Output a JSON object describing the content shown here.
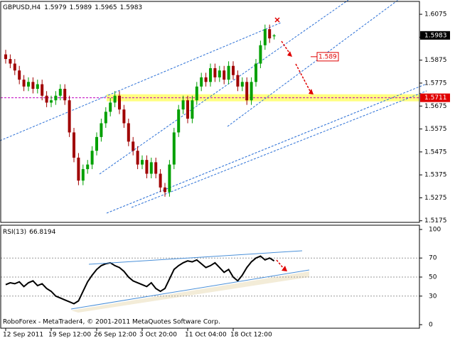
{
  "chart_data": [
    {
      "type": "candlestick",
      "title": "GBPUSD,H4",
      "categories": [
        "12 Sep 2011",
        null,
        null,
        null,
        null,
        null,
        null,
        null,
        null,
        null,
        "19 Sep 12:00",
        null,
        null,
        null,
        null,
        null,
        null,
        null,
        null,
        null,
        "26 Sep 12:00",
        null,
        null,
        null,
        null,
        null,
        null,
        null,
        null,
        null,
        "3 Oct 20:00",
        null,
        null,
        null,
        null,
        null,
        null,
        null,
        null,
        null,
        "11 Oct 04:00",
        null,
        null,
        null,
        null,
        null,
        null,
        null,
        null,
        null,
        "18 Oct 12:00",
        null,
        null,
        null,
        null,
        null,
        null,
        null,
        null,
        null
      ],
      "open": [
        1.59,
        1.588,
        1.586,
        1.583,
        1.579,
        1.576,
        1.578,
        1.575,
        1.577,
        1.572,
        1.569,
        1.57,
        1.572,
        1.575,
        1.57,
        1.556,
        1.545,
        1.535,
        1.54,
        1.542,
        1.548,
        1.554,
        1.56,
        1.565,
        1.569,
        1.572,
        1.566,
        1.56,
        1.552,
        1.548,
        1.542,
        1.544,
        1.538,
        1.543,
        1.538,
        1.532,
        1.53,
        1.542,
        1.556,
        1.566,
        1.57,
        1.562,
        1.57,
        1.576,
        1.58,
        1.578,
        1.584,
        1.58,
        1.583,
        1.579,
        1.585,
        1.581,
        1.576,
        1.578,
        1.57,
        1.578,
        1.586,
        1.594,
        1.601,
        1.5979
      ],
      "high": [
        1.592,
        1.59,
        1.588,
        1.585,
        1.581,
        1.58,
        1.58,
        1.579,
        1.579,
        1.574,
        1.572,
        1.574,
        1.577,
        1.577,
        1.572,
        1.558,
        1.547,
        1.542,
        1.544,
        1.55,
        1.556,
        1.562,
        1.567,
        1.571,
        1.574,
        1.574,
        1.568,
        1.562,
        1.554,
        1.55,
        1.546,
        1.546,
        1.545,
        1.545,
        1.54,
        1.534,
        1.544,
        1.558,
        1.568,
        1.572,
        1.572,
        1.572,
        1.578,
        1.582,
        1.582,
        1.586,
        1.586,
        1.585,
        1.585,
        1.587,
        1.587,
        1.583,
        1.58,
        1.58,
        1.58,
        1.588,
        1.596,
        1.603,
        1.603,
        1.5989
      ],
      "low": [
        1.586,
        1.584,
        1.581,
        1.577,
        1.574,
        1.574,
        1.573,
        1.573,
        1.57,
        1.567,
        1.567,
        1.568,
        1.57,
        1.568,
        1.554,
        1.543,
        1.533,
        1.533,
        1.538,
        1.54,
        1.546,
        1.552,
        1.558,
        1.563,
        1.567,
        1.564,
        1.558,
        1.55,
        1.546,
        1.54,
        1.54,
        1.536,
        1.536,
        1.536,
        1.53,
        1.528,
        1.528,
        1.54,
        1.554,
        1.564,
        1.56,
        1.56,
        1.568,
        1.574,
        1.576,
        1.576,
        1.578,
        1.578,
        1.577,
        1.577,
        1.579,
        1.574,
        1.574,
        1.568,
        1.568,
        1.576,
        1.584,
        1.592,
        1.595,
        1.5965
      ],
      "close": [
        1.588,
        1.586,
        1.583,
        1.579,
        1.576,
        1.578,
        1.575,
        1.577,
        1.572,
        1.569,
        1.57,
        1.572,
        1.575,
        1.57,
        1.556,
        1.545,
        1.535,
        1.54,
        1.542,
        1.548,
        1.554,
        1.56,
        1.565,
        1.569,
        1.572,
        1.566,
        1.56,
        1.552,
        1.548,
        1.542,
        1.544,
        1.538,
        1.543,
        1.538,
        1.532,
        1.53,
        1.542,
        1.556,
        1.566,
        1.57,
        1.562,
        1.57,
        1.576,
        1.58,
        1.578,
        1.584,
        1.58,
        1.583,
        1.579,
        1.585,
        1.581,
        1.576,
        1.578,
        1.57,
        1.578,
        1.586,
        1.594,
        1.601,
        1.597,
        1.5983
      ],
      "up_color": "#00a000",
      "down_color": "#a00000",
      "ylim": [
        1.5168,
        1.6131
      ],
      "yticks": [
        1.6075,
        1.5975,
        1.5875,
        1.5775,
        1.5675,
        1.5575,
        1.5475,
        1.5375,
        1.5275,
        1.5175
      ],
      "current_price": 1.5983,
      "target_level": 1.589,
      "support_level": 1.5711
    },
    {
      "type": "line",
      "title": "RSI(13)",
      "last_value": 66.8194,
      "values": [
        42,
        44,
        43,
        45,
        40,
        44,
        46,
        41,
        43,
        38,
        35,
        30,
        28,
        26,
        24,
        22,
        25,
        35,
        45,
        52,
        58,
        62,
        64,
        65,
        62,
        60,
        56,
        50,
        46,
        44,
        42,
        40,
        44,
        38,
        35,
        38,
        48,
        58,
        62,
        65,
        67,
        66,
        68,
        64,
        60,
        62,
        65,
        60,
        55,
        58,
        50,
        46,
        52,
        60,
        66,
        70,
        72,
        68,
        70,
        67
      ],
      "color": "#000000",
      "ylim": [
        0,
        100
      ],
      "yticks": [
        100,
        70,
        50,
        30,
        0
      ],
      "grid_levels": [
        70,
        50,
        30
      ],
      "footer": "RoboForex - MetaTrader4, © 2001-2011 MetaQuotes Software Corp."
    }
  ]
}
